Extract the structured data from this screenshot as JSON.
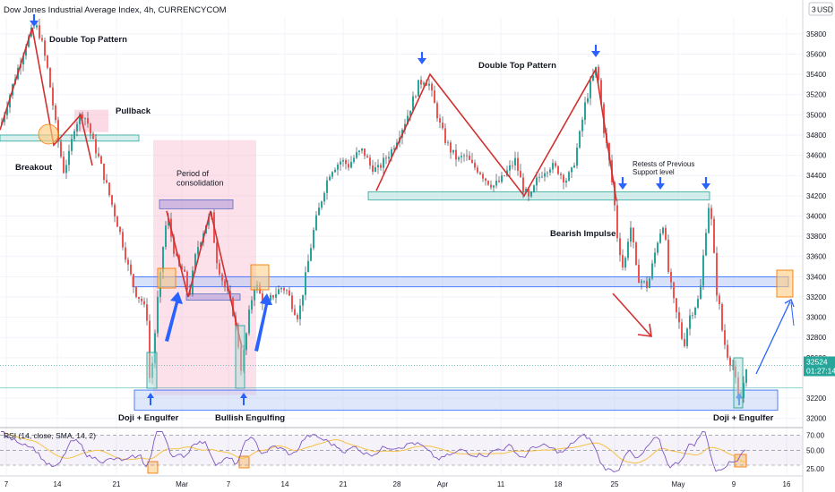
{
  "header": {
    "title": "Dow Jones Industrial Average Index, 4h, CURRENCYCOM",
    "currency_button": "USD",
    "currency_prefix": "3"
  },
  "colors": {
    "bull": "#26a69a",
    "bear": "#ef5350",
    "wick": "#2a2e39",
    "trendline": "#d32f2f",
    "arrow": "#2962ff",
    "support_zone": "#b7c9f5",
    "consolidation_zone": "#f8bbd0",
    "retest_zone": "#b2dfdb",
    "highlight_box": "#ffcc80",
    "rsi_line": "#7e57c2",
    "rsi_sma": "#f6c244",
    "price_label_bg": "#26a69a"
  },
  "chart_data": {
    "type": "candlestick",
    "symbol": "Dow Jones Industrial Average Index",
    "interval": "4h",
    "y_ticks": [
      35800,
      35600,
      35400,
      35200,
      35000,
      34800,
      34600,
      34400,
      34200,
      34000,
      33800,
      33600,
      33400,
      33200,
      33000,
      32800,
      32600,
      32200,
      32000
    ],
    "ylim": [
      31980,
      35940
    ],
    "x_ticks": [
      "7",
      "14",
      "21",
      "Mar",
      "7",
      "14",
      "21",
      "28",
      "Apr",
      "11",
      "18",
      "25",
      "May",
      "9",
      "16"
    ],
    "x_tick_pos": [
      7,
      64,
      130,
      203,
      255,
      318,
      383,
      443,
      494,
      559,
      623,
      686,
      757,
      819,
      878
    ],
    "current_price": "32524",
    "countdown": "01:27:14",
    "last_x": 832,
    "path": [
      [
        0,
        34900
      ],
      [
        15,
        35350
      ],
      [
        28,
        35700
      ],
      [
        36,
        35860
      ],
      [
        41,
        35860
      ],
      [
        46,
        35700
      ],
      [
        52,
        35450
      ],
      [
        58,
        35100
      ],
      [
        63,
        34780
      ],
      [
        70,
        34450
      ],
      [
        76,
        34600
      ],
      [
        82,
        34880
      ],
      [
        90,
        35020
      ],
      [
        96,
        34950
      ],
      [
        102,
        34750
      ],
      [
        110,
        34550
      ],
      [
        118,
        34300
      ],
      [
        126,
        34050
      ],
      [
        134,
        33800
      ],
      [
        142,
        33500
      ],
      [
        150,
        33250
      ],
      [
        158,
        33150
      ],
      [
        163,
        33000
      ],
      [
        166,
        32400
      ],
      [
        170,
        32600
      ],
      [
        174,
        33100
      ],
      [
        178,
        33400
      ],
      [
        182,
        33800
      ],
      [
        186,
        34000
      ],
      [
        192,
        33700
      ],
      [
        198,
        33500
      ],
      [
        204,
        33450
      ],
      [
        210,
        33200
      ],
      [
        218,
        33650
      ],
      [
        224,
        33800
      ],
      [
        230,
        33950
      ],
      [
        235,
        34000
      ],
      [
        240,
        33600
      ],
      [
        246,
        33400
      ],
      [
        252,
        33250
      ],
      [
        258,
        33100
      ],
      [
        264,
        32800
      ],
      [
        268,
        32500
      ],
      [
        272,
        32700
      ],
      [
        278,
        33100
      ],
      [
        284,
        33350
      ],
      [
        290,
        33200
      ],
      [
        296,
        33100
      ],
      [
        302,
        33200
      ],
      [
        308,
        33250
      ],
      [
        314,
        33300
      ],
      [
        320,
        33250
      ],
      [
        326,
        33100
      ],
      [
        332,
        33000
      ],
      [
        338,
        33300
      ],
      [
        344,
        33600
      ],
      [
        350,
        33900
      ],
      [
        356,
        34100
      ],
      [
        362,
        34300
      ],
      [
        368,
        34450
      ],
      [
        374,
        34500
      ],
      [
        380,
        34550
      ],
      [
        388,
        34500
      ],
      [
        396,
        34600
      ],
      [
        404,
        34650
      ],
      [
        412,
        34500
      ],
      [
        420,
        34450
      ],
      [
        428,
        34550
      ],
      [
        436,
        34650
      ],
      [
        444,
        34800
      ],
      [
        452,
        34950
      ],
      [
        460,
        35150
      ],
      [
        466,
        35300
      ],
      [
        472,
        35350
      ],
      [
        478,
        35300
      ],
      [
        484,
        35100
      ],
      [
        490,
        34900
      ],
      [
        496,
        34750
      ],
      [
        502,
        34650
      ],
      [
        510,
        34550
      ],
      [
        518,
        34600
      ],
      [
        526,
        34500
      ],
      [
        534,
        34450
      ],
      [
        542,
        34350
      ],
      [
        550,
        34300
      ],
      [
        558,
        34350
      ],
      [
        566,
        34450
      ],
      [
        574,
        34550
      ],
      [
        582,
        34300
      ],
      [
        590,
        34150
      ],
      [
        598,
        34350
      ],
      [
        606,
        34450
      ],
      [
        614,
        34500
      ],
      [
        622,
        34450
      ],
      [
        630,
        34350
      ],
      [
        638,
        34450
      ],
      [
        646,
        34800
      ],
      [
        652,
        35100
      ],
      [
        658,
        35300
      ],
      [
        664,
        35450
      ],
      [
        668,
        35300
      ],
      [
        672,
        34900
      ],
      [
        678,
        34600
      ],
      [
        684,
        34200
      ],
      [
        688,
        33800
      ],
      [
        694,
        33500
      ],
      [
        698,
        33600
      ],
      [
        702,
        33950
      ],
      [
        706,
        33700
      ],
      [
        710,
        33400
      ],
      [
        716,
        33350
      ],
      [
        722,
        33300
      ],
      [
        728,
        33550
      ],
      [
        734,
        33800
      ],
      [
        740,
        33950
      ],
      [
        744,
        33500
      ],
      [
        748,
        33300
      ],
      [
        752,
        33100
      ],
      [
        758,
        32900
      ],
      [
        762,
        32700
      ],
      [
        768,
        33000
      ],
      [
        774,
        33100
      ],
      [
        780,
        33200
      ],
      [
        786,
        33800
      ],
      [
        790,
        34100
      ],
      [
        794,
        33900
      ],
      [
        798,
        33300
      ],
      [
        802,
        33100
      ],
      [
        806,
        32800
      ],
      [
        812,
        32600
      ],
      [
        818,
        32500
      ],
      [
        824,
        32100
      ],
      [
        828,
        32300
      ],
      [
        832,
        32524
      ]
    ],
    "price_levels": [
      {
        "name": "resistance",
        "low": 34740,
        "high": 34800
      },
      {
        "name": "retest-support",
        "low": 34160,
        "high": 34240
      },
      {
        "name": "breakdown-level",
        "low": 33300,
        "high": 33400
      },
      {
        "name": "demand-zone",
        "low": 32080,
        "high": 32280
      }
    ],
    "annotations": {
      "double_top_left": "Double Top Pattern",
      "pullback": "Pullback",
      "breakout": "Breakout",
      "consolidation": "Period of\nconsolidation",
      "double_top_right": "Double Top Pattern",
      "retests": "Retests of Previous\nSupport level",
      "bearish_impulse": "Bearish Impulse",
      "doji_engulfer_1": "Doji + Engulfer",
      "bullish_engulfing": "Bullish Engulfing",
      "doji_engulfer_2": "Doji + Engulfer"
    },
    "rsi": {
      "legend": "RSI (14, close, SMA, 14, 2)",
      "ticks": [
        "70.00",
        "50.00",
        "25.00"
      ],
      "tick_values": [
        70,
        50,
        25
      ],
      "ylim": [
        18,
        78
      ]
    }
  }
}
